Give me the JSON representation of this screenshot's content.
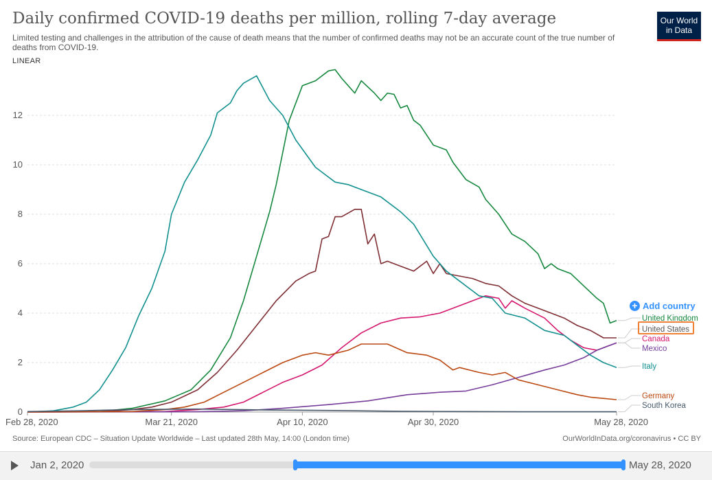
{
  "header": {
    "title": "Daily confirmed COVID-19 deaths per million, rolling 7-day average",
    "subtitle": "Limited testing and challenges in the attribution of the cause of death means that the number of confirmed deaths may not be an accurate count of the true number of deaths from COVID-19.",
    "scale_toggle": "LINEAR",
    "logo_line1": "Our World",
    "logo_line2": "in Data"
  },
  "controls": {
    "add_country": "Add country",
    "add_icon": "plus-circle-icon"
  },
  "footer": {
    "source": "Source: European CDC – Situation Update Worldwide – Last updated 28th May, 14:00 (London time)",
    "credit": "OurWorldInData.org/coronavirus • CC BY"
  },
  "timeline": {
    "start_label": "Jan 2, 2020",
    "end_label": "May 28, 2020",
    "play_icon": "play-icon",
    "selected_range": [
      "2020-02-28",
      "2020-05-28"
    ]
  },
  "colors": {
    "United Kingdom": "#14873d",
    "United States": "#7e2d33",
    "Canada": "#d4166d",
    "Mexico": "#763d9a",
    "Italy": "#11908e",
    "Germany": "#bb4710",
    "South Korea": "#46586a",
    "accent": "#3392ff",
    "highlight": "#f07f38"
  },
  "chart_data": {
    "type": "line",
    "x_start": "2020-02-28",
    "x_end": "2020-05-28",
    "x_ticks": [
      {
        "label": "Feb 28, 2020",
        "date": "2020-02-28"
      },
      {
        "label": "Mar 21, 2020",
        "date": "2020-03-21"
      },
      {
        "label": "Apr 10, 2020",
        "date": "2020-04-10"
      },
      {
        "label": "Apr 30, 2020",
        "date": "2020-04-30"
      },
      {
        "label": "May 28, 2020",
        "date": "2020-05-28"
      }
    ],
    "ylim": [
      0,
      14
    ],
    "y_ticks": [
      0,
      2,
      4,
      6,
      8,
      10,
      12
    ],
    "grid": "horizontal-dashed",
    "highlighted_series": "United States",
    "series": [
      {
        "name": "United Kingdom",
        "points": [
          [
            "2020-02-28",
            0
          ],
          [
            "2020-03-10",
            0.02
          ],
          [
            "2020-03-15",
            0.15
          ],
          [
            "2020-03-20",
            0.45
          ],
          [
            "2020-03-24",
            0.9
          ],
          [
            "2020-03-27",
            1.7
          ],
          [
            "2020-03-30",
            3.0
          ],
          [
            "2020-04-01",
            4.5
          ],
          [
            "2020-04-03",
            6.3
          ],
          [
            "2020-04-05",
            8.1
          ],
          [
            "2020-04-06",
            9.2
          ],
          [
            "2020-04-08",
            11.8
          ],
          [
            "2020-04-10",
            13.2
          ],
          [
            "2020-04-12",
            13.4
          ],
          [
            "2020-04-14",
            13.8
          ],
          [
            "2020-04-15",
            13.85
          ],
          [
            "2020-04-16",
            13.5
          ],
          [
            "2020-04-18",
            12.9
          ],
          [
            "2020-04-19",
            13.4
          ],
          [
            "2020-04-21",
            12.9
          ],
          [
            "2020-04-22",
            12.6
          ],
          [
            "2020-04-23",
            12.9
          ],
          [
            "2020-04-24",
            12.85
          ],
          [
            "2020-04-25",
            12.3
          ],
          [
            "2020-04-26",
            12.4
          ],
          [
            "2020-04-27",
            11.8
          ],
          [
            "2020-04-28",
            11.6
          ],
          [
            "2020-04-30",
            10.8
          ],
          [
            "2020-05-02",
            10.6
          ],
          [
            "2020-05-03",
            10.1
          ],
          [
            "2020-05-05",
            9.4
          ],
          [
            "2020-05-07",
            9.1
          ],
          [
            "2020-05-08",
            8.6
          ],
          [
            "2020-05-10",
            8.0
          ],
          [
            "2020-05-11",
            7.6
          ],
          [
            "2020-05-12",
            7.2
          ],
          [
            "2020-05-14",
            6.9
          ],
          [
            "2020-05-16",
            6.4
          ],
          [
            "2020-05-17",
            5.8
          ],
          [
            "2020-05-18",
            6.0
          ],
          [
            "2020-05-19",
            5.8
          ],
          [
            "2020-05-21",
            5.6
          ],
          [
            "2020-05-23",
            5.1
          ],
          [
            "2020-05-25",
            4.6
          ],
          [
            "2020-05-26",
            4.4
          ],
          [
            "2020-05-27",
            3.6
          ],
          [
            "2020-05-28",
            3.7
          ]
        ]
      },
      {
        "name": "United States",
        "points": [
          [
            "2020-02-28",
            0
          ],
          [
            "2020-03-10",
            0.01
          ],
          [
            "2020-03-15",
            0.1
          ],
          [
            "2020-03-18",
            0.2
          ],
          [
            "2020-03-21",
            0.4
          ],
          [
            "2020-03-25",
            0.9
          ],
          [
            "2020-03-28",
            1.6
          ],
          [
            "2020-03-31",
            2.5
          ],
          [
            "2020-04-03",
            3.5
          ],
          [
            "2020-04-06",
            4.5
          ],
          [
            "2020-04-09",
            5.3
          ],
          [
            "2020-04-11",
            5.6
          ],
          [
            "2020-04-12",
            5.7
          ],
          [
            "2020-04-13",
            7.0
          ],
          [
            "2020-04-14",
            7.1
          ],
          [
            "2020-04-15",
            7.9
          ],
          [
            "2020-04-16",
            7.9
          ],
          [
            "2020-04-18",
            8.2
          ],
          [
            "2020-04-19",
            8.2
          ],
          [
            "2020-04-20",
            6.8
          ],
          [
            "2020-04-21",
            7.2
          ],
          [
            "2020-04-22",
            6.0
          ],
          [
            "2020-04-23",
            6.1
          ],
          [
            "2020-04-25",
            5.9
          ],
          [
            "2020-04-27",
            5.7
          ],
          [
            "2020-04-29",
            6.1
          ],
          [
            "2020-04-30",
            5.6
          ],
          [
            "2020-05-01",
            6.0
          ],
          [
            "2020-05-02",
            5.6
          ],
          [
            "2020-05-04",
            5.5
          ],
          [
            "2020-05-06",
            5.4
          ],
          [
            "2020-05-08",
            5.2
          ],
          [
            "2020-05-10",
            5.1
          ],
          [
            "2020-05-12",
            4.7
          ],
          [
            "2020-05-14",
            4.4
          ],
          [
            "2020-05-16",
            4.2
          ],
          [
            "2020-05-18",
            4.0
          ],
          [
            "2020-05-20",
            3.8
          ],
          [
            "2020-05-22",
            3.5
          ],
          [
            "2020-05-24",
            3.3
          ],
          [
            "2020-05-26",
            3.0
          ],
          [
            "2020-05-28",
            3.0
          ]
        ]
      },
      {
        "name": "Canada",
        "points": [
          [
            "2020-02-28",
            0
          ],
          [
            "2020-03-20",
            0.02
          ],
          [
            "2020-03-25",
            0.1
          ],
          [
            "2020-03-29",
            0.2
          ],
          [
            "2020-04-01",
            0.4
          ],
          [
            "2020-04-04",
            0.8
          ],
          [
            "2020-04-07",
            1.2
          ],
          [
            "2020-04-10",
            1.5
          ],
          [
            "2020-04-13",
            1.9
          ],
          [
            "2020-04-16",
            2.6
          ],
          [
            "2020-04-19",
            3.2
          ],
          [
            "2020-04-22",
            3.6
          ],
          [
            "2020-04-25",
            3.8
          ],
          [
            "2020-04-28",
            3.85
          ],
          [
            "2020-05-01",
            4.0
          ],
          [
            "2020-05-04",
            4.3
          ],
          [
            "2020-05-07",
            4.6
          ],
          [
            "2020-05-08",
            4.7
          ],
          [
            "2020-05-10",
            4.6
          ],
          [
            "2020-05-11",
            4.2
          ],
          [
            "2020-05-12",
            4.5
          ],
          [
            "2020-05-14",
            4.2
          ],
          [
            "2020-05-17",
            3.8
          ],
          [
            "2020-05-19",
            3.3
          ],
          [
            "2020-05-21",
            2.9
          ],
          [
            "2020-05-23",
            2.6
          ],
          [
            "2020-05-25",
            2.5
          ],
          [
            "2020-05-27",
            2.7
          ],
          [
            "2020-05-28",
            2.8
          ]
        ]
      },
      {
        "name": "Mexico",
        "points": [
          [
            "2020-02-28",
            0
          ],
          [
            "2020-03-25",
            0.01
          ],
          [
            "2020-04-01",
            0.05
          ],
          [
            "2020-04-07",
            0.15
          ],
          [
            "2020-04-14",
            0.3
          ],
          [
            "2020-04-20",
            0.45
          ],
          [
            "2020-04-26",
            0.7
          ],
          [
            "2020-05-01",
            0.8
          ],
          [
            "2020-05-05",
            0.85
          ],
          [
            "2020-05-09",
            1.1
          ],
          [
            "2020-05-13",
            1.4
          ],
          [
            "2020-05-17",
            1.7
          ],
          [
            "2020-05-20",
            1.9
          ],
          [
            "2020-05-23",
            2.2
          ],
          [
            "2020-05-25",
            2.5
          ],
          [
            "2020-05-27",
            2.7
          ],
          [
            "2020-05-28",
            2.8
          ]
        ]
      },
      {
        "name": "Italy",
        "points": [
          [
            "2020-02-28",
            0
          ],
          [
            "2020-03-03",
            0.05
          ],
          [
            "2020-03-06",
            0.2
          ],
          [
            "2020-03-08",
            0.4
          ],
          [
            "2020-03-10",
            0.9
          ],
          [
            "2020-03-12",
            1.7
          ],
          [
            "2020-03-14",
            2.6
          ],
          [
            "2020-03-16",
            3.9
          ],
          [
            "2020-03-18",
            5.0
          ],
          [
            "2020-03-20",
            6.5
          ],
          [
            "2020-03-21",
            8.0
          ],
          [
            "2020-03-23",
            9.3
          ],
          [
            "2020-03-25",
            10.2
          ],
          [
            "2020-03-27",
            11.2
          ],
          [
            "2020-03-28",
            12.1
          ],
          [
            "2020-03-30",
            12.5
          ],
          [
            "2020-03-31",
            13.0
          ],
          [
            "2020-04-01",
            13.3
          ],
          [
            "2020-04-03",
            13.6
          ],
          [
            "2020-04-05",
            12.6
          ],
          [
            "2020-04-07",
            12.0
          ],
          [
            "2020-04-09",
            11.0
          ],
          [
            "2020-04-12",
            9.9
          ],
          [
            "2020-04-15",
            9.3
          ],
          [
            "2020-04-17",
            9.2
          ],
          [
            "2020-04-20",
            8.9
          ],
          [
            "2020-04-22",
            8.7
          ],
          [
            "2020-04-25",
            8.1
          ],
          [
            "2020-04-27",
            7.6
          ],
          [
            "2020-04-30",
            6.3
          ],
          [
            "2020-05-02",
            5.7
          ],
          [
            "2020-05-04",
            5.3
          ],
          [
            "2020-05-06",
            4.9
          ],
          [
            "2020-05-07",
            4.7
          ],
          [
            "2020-05-09",
            4.6
          ],
          [
            "2020-05-11",
            4.0
          ],
          [
            "2020-05-14",
            3.8
          ],
          [
            "2020-05-17",
            3.3
          ],
          [
            "2020-05-20",
            3.1
          ],
          [
            "2020-05-22",
            2.7
          ],
          [
            "2020-05-24",
            2.3
          ],
          [
            "2020-05-26",
            2.0
          ],
          [
            "2020-05-28",
            1.8
          ]
        ]
      },
      {
        "name": "Germany",
        "points": [
          [
            "2020-02-28",
            0
          ],
          [
            "2020-03-15",
            0.02
          ],
          [
            "2020-03-20",
            0.1
          ],
          [
            "2020-03-23",
            0.2
          ],
          [
            "2020-03-26",
            0.4
          ],
          [
            "2020-03-29",
            0.8
          ],
          [
            "2020-04-01",
            1.2
          ],
          [
            "2020-04-04",
            1.6
          ],
          [
            "2020-04-07",
            2.0
          ],
          [
            "2020-04-10",
            2.3
          ],
          [
            "2020-04-12",
            2.4
          ],
          [
            "2020-04-14",
            2.3
          ],
          [
            "2020-04-17",
            2.5
          ],
          [
            "2020-04-19",
            2.75
          ],
          [
            "2020-04-21",
            2.75
          ],
          [
            "2020-04-23",
            2.75
          ],
          [
            "2020-04-26",
            2.4
          ],
          [
            "2020-04-29",
            2.3
          ],
          [
            "2020-05-01",
            2.1
          ],
          [
            "2020-05-03",
            1.7
          ],
          [
            "2020-05-04",
            1.8
          ],
          [
            "2020-05-07",
            1.6
          ],
          [
            "2020-05-09",
            1.5
          ],
          [
            "2020-05-11",
            1.6
          ],
          [
            "2020-05-13",
            1.3
          ],
          [
            "2020-05-16",
            1.1
          ],
          [
            "2020-05-19",
            0.9
          ],
          [
            "2020-05-22",
            0.7
          ],
          [
            "2020-05-24",
            0.6
          ],
          [
            "2020-05-26",
            0.55
          ],
          [
            "2020-05-28",
            0.5
          ]
        ]
      },
      {
        "name": "South Korea",
        "points": [
          [
            "2020-02-28",
            0.02
          ],
          [
            "2020-03-07",
            0.05
          ],
          [
            "2020-03-15",
            0.1
          ],
          [
            "2020-03-25",
            0.12
          ],
          [
            "2020-04-05",
            0.08
          ],
          [
            "2020-04-15",
            0.06
          ],
          [
            "2020-04-25",
            0.03
          ],
          [
            "2020-05-05",
            0.02
          ],
          [
            "2020-05-15",
            0.01
          ],
          [
            "2020-05-28",
            0.01
          ]
        ]
      }
    ]
  }
}
